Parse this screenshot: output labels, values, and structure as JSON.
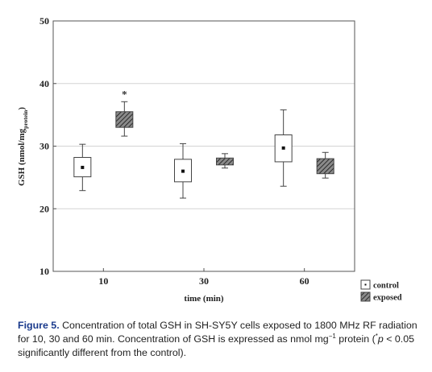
{
  "chart_data": {
    "type": "box",
    "categories": [
      "10",
      "30",
      "60"
    ],
    "xlabel": "time (min)",
    "ylabel_main": "GSH (nmol/mg",
    "ylabel_sub": "protein",
    "ylabel_close": ")",
    "ylim": [
      10,
      50
    ],
    "yticks": [
      10,
      20,
      30,
      40,
      50
    ],
    "grid": "horizontal",
    "legend_position": "bottom-right",
    "significance_symbol": "*",
    "series": [
      {
        "name": "control",
        "style": "open",
        "boxes": [
          {
            "category": "10",
            "whisker_low": 22.9,
            "q1": 25.1,
            "mean": 26.6,
            "q3": 28.2,
            "whisker_high": 30.3,
            "significant": false
          },
          {
            "category": "30",
            "whisker_low": 21.7,
            "q1": 24.3,
            "mean": 26.0,
            "q3": 27.9,
            "whisker_high": 30.4,
            "significant": false
          },
          {
            "category": "60",
            "whisker_low": 23.6,
            "q1": 27.5,
            "mean": 29.7,
            "q3": 31.8,
            "whisker_high": 35.8,
            "significant": false
          }
        ]
      },
      {
        "name": "exposed",
        "style": "hatched",
        "boxes": [
          {
            "category": "10",
            "whisker_low": 31.6,
            "q1": 33.0,
            "mean": 34.3,
            "q3": 35.5,
            "whisker_high": 37.1,
            "significant": true
          },
          {
            "category": "30",
            "whisker_low": 26.5,
            "q1": 27.0,
            "mean": 27.5,
            "q3": 28.1,
            "whisker_high": 28.8,
            "significant": false
          },
          {
            "category": "60",
            "whisker_low": 24.9,
            "q1": 25.6,
            "mean": 26.7,
            "q3": 28.0,
            "whisker_high": 29.0,
            "significant": false
          }
        ]
      }
    ]
  },
  "caption": {
    "figure_label": "Figure 5.",
    "text_1": " Concentration of total GSH in SH-SY5Y cells exposed to 1800 MHz RF radiation for 10, 30 and 60 min. Concentration of GSH is expressed as nmol mg",
    "superscript": "−1",
    "text_2": " protein (",
    "p_star": "*",
    "p_var": "p",
    "text_3": " < 0.05 significantly different from the control)."
  },
  "colors": {
    "axis": "#555555",
    "grid": "#d4d4d4",
    "box_stroke": "#444444",
    "hatch": "#333333",
    "hatch_bg": "#8a8a8a",
    "mean_marker": "#111111"
  }
}
